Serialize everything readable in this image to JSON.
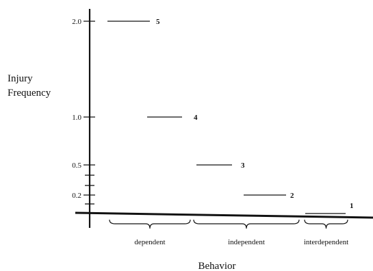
{
  "chart_data": {
    "type": "scatter",
    "title": "",
    "ylabel_lines": [
      "Injury",
      "Frequency"
    ],
    "xlabel": "Behavior",
    "y_tick_labels": [
      {
        "value": 2.0,
        "label": "2.0"
      },
      {
        "value": 1.0,
        "label": "1.0"
      },
      {
        "value": 0.5,
        "label": "0.5"
      },
      {
        "value": 0.2,
        "label": "0.2"
      }
    ],
    "y_minor_ticks": [
      0.4,
      0.3,
      0.1
    ],
    "groups": [
      {
        "label": "dependent",
        "span": [
          1,
          2
        ]
      },
      {
        "label": "independent",
        "span": [
          3,
          4
        ]
      },
      {
        "label": "interdependent",
        "span": [
          5,
          5
        ]
      }
    ],
    "points": [
      {
        "label": "5",
        "x": 1,
        "y": 2.0
      },
      {
        "label": "4",
        "x": 2,
        "y": 1.0
      },
      {
        "label": "3",
        "x": 3,
        "y": 0.5
      },
      {
        "label": "2",
        "x": 4,
        "y": 0.2
      },
      {
        "label": "1",
        "x": 5,
        "y": 0.0
      }
    ],
    "colors": {
      "ink": "#111111"
    }
  }
}
